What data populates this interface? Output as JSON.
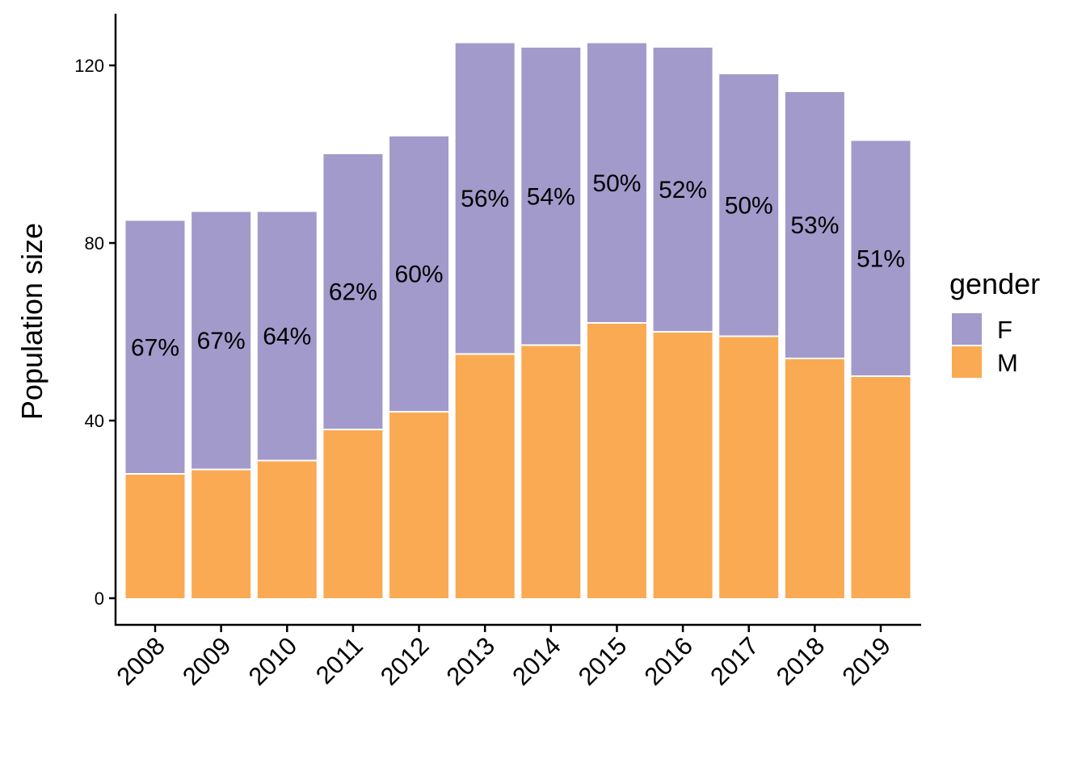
{
  "chart_data": {
    "type": "bar",
    "stacked": true,
    "title": "",
    "xlabel": "",
    "ylabel": "Population size",
    "ylim": [
      0,
      130
    ],
    "yticks": [
      0,
      40,
      80,
      120
    ],
    "categories": [
      "2008",
      "2009",
      "2010",
      "2011",
      "2012",
      "2013",
      "2014",
      "2015",
      "2016",
      "2017",
      "2018",
      "2019"
    ],
    "series": [
      {
        "name": "M",
        "color": "#FAAA52",
        "values": [
          28,
          29,
          31,
          38,
          42,
          55,
          57,
          62,
          60,
          59,
          54,
          50
        ]
      },
      {
        "name": "F",
        "color": "#A29ACA",
        "values": [
          57,
          58,
          56,
          62,
          62,
          70,
          67,
          63,
          64,
          59,
          60,
          53
        ]
      }
    ],
    "data_labels": [
      "67%",
      "67%",
      "64%",
      "62%",
      "60%",
      "56%",
      "54%",
      "50%",
      "52%",
      "50%",
      "53%",
      "51%"
    ],
    "legend": {
      "title": "gender",
      "position": "right",
      "entries": [
        {
          "label": "F",
          "color": "#A29ACA"
        },
        {
          "label": "M",
          "color": "#FAAA52"
        }
      ]
    }
  }
}
